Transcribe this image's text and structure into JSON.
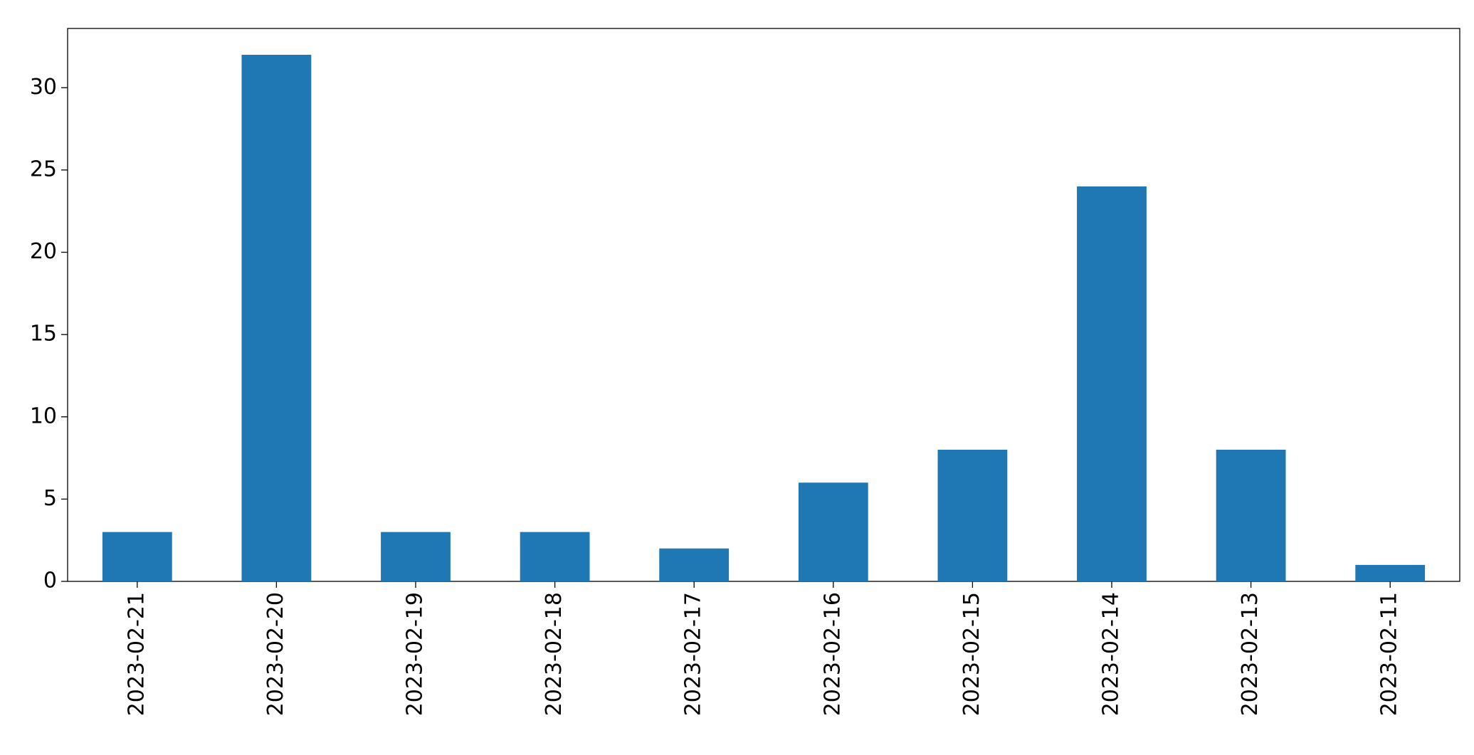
{
  "chart_data": {
    "type": "bar",
    "categories": [
      "2023-02-21",
      "2023-02-20",
      "2023-02-19",
      "2023-02-18",
      "2023-02-17",
      "2023-02-16",
      "2023-02-15",
      "2023-02-14",
      "2023-02-13",
      "2023-02-11"
    ],
    "values": [
      3,
      32,
      3,
      3,
      2,
      6,
      8,
      24,
      8,
      1
    ],
    "color": "#1f77b4",
    "ylim": [
      0,
      33.6
    ],
    "yticks": [
      0,
      5,
      10,
      15,
      20,
      25,
      30
    ],
    "grid": false
  }
}
